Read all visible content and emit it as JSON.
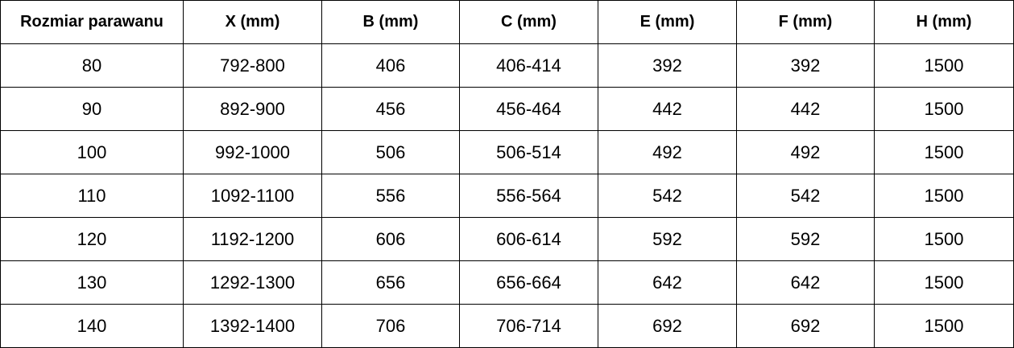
{
  "table": {
    "headers": [
      "Rozmiar parawanu",
      "X (mm)",
      "B (mm)",
      "C (mm)",
      "E (mm)",
      "F (mm)",
      "H (mm)"
    ],
    "rows": [
      [
        "80",
        "792-800",
        "406",
        "406-414",
        "392",
        "392",
        "1500"
      ],
      [
        "90",
        "892-900",
        "456",
        "456-464",
        "442",
        "442",
        "1500"
      ],
      [
        "100",
        "992-1000",
        "506",
        "506-514",
        "492",
        "492",
        "1500"
      ],
      [
        "110",
        "1092-1100",
        "556",
        "556-564",
        "542",
        "542",
        "1500"
      ],
      [
        "120",
        "1192-1200",
        "606",
        "606-614",
        "592",
        "592",
        "1500"
      ],
      [
        "130",
        "1292-1300",
        "656",
        "656-664",
        "642",
        "642",
        "1500"
      ],
      [
        "140",
        "1392-1400",
        "706",
        "706-714",
        "692",
        "692",
        "1500"
      ]
    ]
  }
}
